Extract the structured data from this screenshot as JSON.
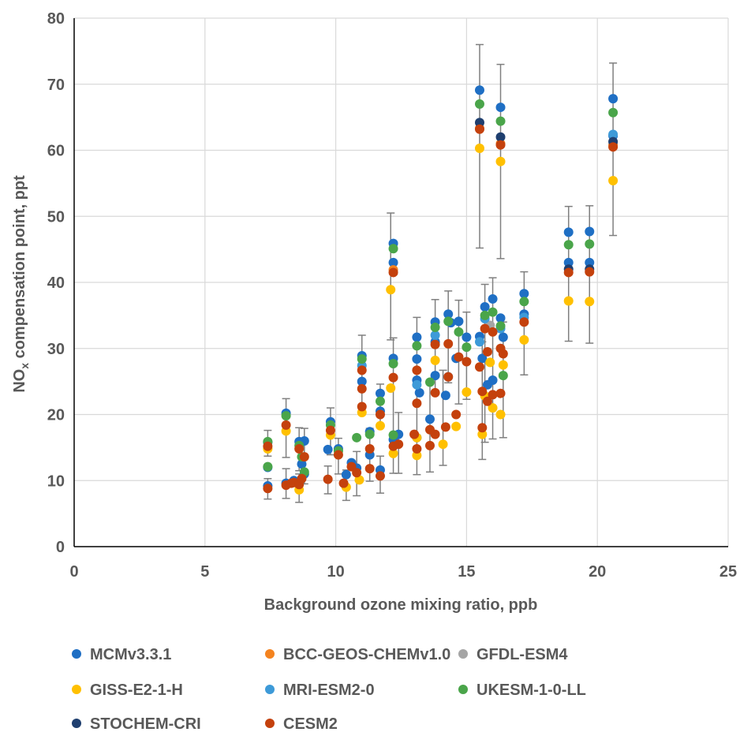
{
  "chart_data": {
    "type": "scatter",
    "xlabel": "Background ozone mixing ratio, ppb",
    "ylabel_main": "NO",
    "ylabel_sub": "x",
    "ylabel_rest": " compensation point, ppt",
    "xlim": [
      0,
      25
    ],
    "ylim": [
      0,
      80
    ],
    "xticks": [
      "0",
      "5",
      "10",
      "15",
      "20",
      "25"
    ],
    "yticks": [
      "0",
      "10",
      "20",
      "30",
      "40",
      "50",
      "60",
      "70",
      "80"
    ],
    "grid": true,
    "legend_position": "bottom",
    "series": [
      {
        "name": "MCMv3.3.1",
        "color": "#1f6fc4",
        "points": [
          [
            7.4,
            15.8
          ],
          [
            7.4,
            12.0
          ],
          [
            7.4,
            9.2
          ],
          [
            8.1,
            20.2
          ],
          [
            8.1,
            9.6
          ],
          [
            8.4,
            10.0
          ],
          [
            8.6,
            15.9
          ],
          [
            8.7,
            12.5
          ],
          [
            8.8,
            16.0
          ],
          [
            8.8,
            11.0
          ],
          [
            9.7,
            14.7
          ],
          [
            9.8,
            18.9
          ],
          [
            10.1,
            14.8
          ],
          [
            10.4,
            10.9
          ],
          [
            10.6,
            12.7
          ],
          [
            10.8,
            11.9
          ],
          [
            11.0,
            28.9
          ],
          [
            11.0,
            25.0
          ],
          [
            11.3,
            17.4
          ],
          [
            11.3,
            13.9
          ],
          [
            11.7,
            20.5
          ],
          [
            11.7,
            23.2
          ],
          [
            11.7,
            11.6
          ],
          [
            12.2,
            45.9
          ],
          [
            12.2,
            43.0
          ],
          [
            12.2,
            28.5
          ],
          [
            12.2,
            16.2
          ],
          [
            12.4,
            17.0
          ],
          [
            13.1,
            31.7
          ],
          [
            13.1,
            25.2
          ],
          [
            13.1,
            28.4
          ],
          [
            13.1,
            16.5
          ],
          [
            13.2,
            23.3
          ],
          [
            13.6,
            19.3
          ],
          [
            13.8,
            34.0
          ],
          [
            13.8,
            31.0
          ],
          [
            13.8,
            25.9
          ],
          [
            14.2,
            22.9
          ],
          [
            14.3,
            35.2
          ],
          [
            14.3,
            25.7
          ],
          [
            14.4,
            33.9
          ],
          [
            14.6,
            28.5
          ],
          [
            14.7,
            34.1
          ],
          [
            15.0,
            31.7
          ],
          [
            15.5,
            69.1
          ],
          [
            15.5,
            31.8
          ],
          [
            15.6,
            28.5
          ],
          [
            15.7,
            36.3
          ],
          [
            15.8,
            24.5
          ],
          [
            16.0,
            37.5
          ],
          [
            16.0,
            25.2
          ],
          [
            16.3,
            66.5
          ],
          [
            16.3,
            34.6
          ],
          [
            16.4,
            31.7
          ],
          [
            17.2,
            38.3
          ],
          [
            17.2,
            35.2
          ],
          [
            18.9,
            47.6
          ],
          [
            18.9,
            43.0
          ],
          [
            19.7,
            47.7
          ],
          [
            19.7,
            43.0
          ],
          [
            20.6,
            67.8
          ],
          [
            20.6,
            62.2
          ]
        ]
      },
      {
        "name": "BCC-GEOS-CHEMv1.0",
        "color": "#f4831f",
        "points": [
          [
            12.2,
            41.9
          ],
          [
            15.5,
            63.3
          ],
          [
            16.3,
            61.0
          ],
          [
            20.6,
            60.8
          ]
        ]
      },
      {
        "name": "GFDL-ESM4",
        "color": "#a5a5a5",
        "points": [
          [
            15.9,
            33.5
          ]
        ]
      },
      {
        "name": "GISS-E2-1-H",
        "color": "#ffc000",
        "points": [
          [
            7.4,
            14.8
          ],
          [
            8.1,
            17.5
          ],
          [
            8.6,
            8.6
          ],
          [
            9.8,
            16.9
          ],
          [
            10.4,
            9.0
          ],
          [
            10.9,
            10.1
          ],
          [
            11.0,
            20.3
          ],
          [
            11.7,
            18.3
          ],
          [
            12.1,
            38.9
          ],
          [
            12.1,
            24.0
          ],
          [
            12.2,
            14.1
          ],
          [
            13.1,
            13.8
          ],
          [
            13.1,
            16.5
          ],
          [
            13.8,
            28.2
          ],
          [
            14.1,
            15.5
          ],
          [
            14.6,
            18.2
          ],
          [
            15.0,
            23.4
          ],
          [
            15.5,
            60.3
          ],
          [
            15.6,
            17.0
          ],
          [
            15.7,
            22.8
          ],
          [
            15.9,
            27.9
          ],
          [
            16.0,
            21.0
          ],
          [
            16.3,
            58.3
          ],
          [
            16.3,
            20.0
          ],
          [
            16.4,
            27.5
          ],
          [
            17.2,
            31.3
          ],
          [
            18.9,
            37.2
          ],
          [
            19.7,
            37.1
          ],
          [
            20.6,
            55.4
          ]
        ]
      },
      {
        "name": "MRI-ESM2-0",
        "color": "#3d9ad8",
        "points": [
          [
            11.0,
            27.4
          ],
          [
            13.1,
            24.5
          ],
          [
            13.8,
            32.0
          ],
          [
            15.5,
            31.0
          ],
          [
            15.7,
            34.5
          ],
          [
            16.3,
            33.0
          ],
          [
            17.2,
            34.7
          ],
          [
            20.6,
            62.4
          ]
        ]
      },
      {
        "name": "UKESM-1-0-LL",
        "color": "#4aa54a",
        "points": [
          [
            7.4,
            15.9
          ],
          [
            7.4,
            12.1
          ],
          [
            8.1,
            19.8
          ],
          [
            8.6,
            15.3
          ],
          [
            8.7,
            13.6
          ],
          [
            8.8,
            11.3
          ],
          [
            9.8,
            18.4
          ],
          [
            10.1,
            14.5
          ],
          [
            10.8,
            16.5
          ],
          [
            11.0,
            28.4
          ],
          [
            11.3,
            17.0
          ],
          [
            11.7,
            22.0
          ],
          [
            12.2,
            45.1
          ],
          [
            12.2,
            27.7
          ],
          [
            12.2,
            16.9
          ],
          [
            13.1,
            30.4
          ],
          [
            13.6,
            24.9
          ],
          [
            13.8,
            33.2
          ],
          [
            14.3,
            34.1
          ],
          [
            14.7,
            32.5
          ],
          [
            15.0,
            30.2
          ],
          [
            15.5,
            67.0
          ],
          [
            15.7,
            35.0
          ],
          [
            16.0,
            35.5
          ],
          [
            16.3,
            64.4
          ],
          [
            16.3,
            33.4
          ],
          [
            16.4,
            25.9
          ],
          [
            17.2,
            37.1
          ],
          [
            18.9,
            45.7
          ],
          [
            19.7,
            45.8
          ],
          [
            20.6,
            65.7
          ]
        ]
      },
      {
        "name": "STOCHEM-CRI",
        "color": "#1f3f6f",
        "points": [
          [
            15.5,
            64.2
          ],
          [
            16.3,
            62.0
          ],
          [
            18.9,
            42.0
          ],
          [
            19.7,
            42.0
          ],
          [
            20.6,
            61.3
          ]
        ]
      },
      {
        "name": "CESM2",
        "color": "#c4410d",
        "points": [
          [
            7.4,
            15.2
          ],
          [
            7.4,
            8.8
          ],
          [
            8.1,
            18.4
          ],
          [
            8.1,
            9.3
          ],
          [
            8.3,
            9.6
          ],
          [
            8.4,
            9.7
          ],
          [
            8.6,
            14.8
          ],
          [
            8.6,
            9.4
          ],
          [
            8.7,
            10.3
          ],
          [
            8.8,
            13.6
          ],
          [
            9.7,
            10.2
          ],
          [
            9.8,
            17.6
          ],
          [
            10.1,
            13.9
          ],
          [
            10.3,
            9.6
          ],
          [
            10.6,
            12.1
          ],
          [
            10.8,
            11.2
          ],
          [
            11.0,
            26.7
          ],
          [
            11.0,
            23.9
          ],
          [
            11.0,
            21.2
          ],
          [
            11.3,
            14.8
          ],
          [
            11.3,
            11.8
          ],
          [
            11.7,
            20.0
          ],
          [
            11.7,
            10.7
          ],
          [
            12.2,
            41.5
          ],
          [
            12.2,
            25.6
          ],
          [
            12.2,
            15.2
          ],
          [
            12.4,
            15.5
          ],
          [
            13.0,
            17.0
          ],
          [
            13.1,
            26.7
          ],
          [
            13.1,
            21.7
          ],
          [
            13.1,
            14.8
          ],
          [
            13.6,
            17.7
          ],
          [
            13.6,
            15.3
          ],
          [
            13.8,
            30.6
          ],
          [
            13.8,
            23.3
          ],
          [
            13.8,
            17.0
          ],
          [
            14.2,
            18.1
          ],
          [
            14.3,
            30.7
          ],
          [
            14.3,
            25.7
          ],
          [
            14.6,
            20.0
          ],
          [
            14.7,
            28.7
          ],
          [
            15.0,
            28.0
          ],
          [
            15.5,
            63.2
          ],
          [
            15.5,
            27.2
          ],
          [
            15.6,
            23.5
          ],
          [
            15.6,
            18.0
          ],
          [
            15.7,
            33.0
          ],
          [
            15.8,
            29.5
          ],
          [
            15.8,
            22.0
          ],
          [
            16.0,
            32.5
          ],
          [
            16.0,
            23.0
          ],
          [
            16.3,
            60.8
          ],
          [
            16.3,
            30.0
          ],
          [
            16.3,
            23.2
          ],
          [
            16.4,
            29.2
          ],
          [
            17.2,
            34.0
          ],
          [
            18.9,
            41.5
          ],
          [
            19.7,
            41.6
          ],
          [
            20.6,
            60.5
          ]
        ]
      }
    ],
    "error_bars": [
      [
        7.4,
        13.7,
        17.6
      ],
      [
        7.4,
        7.2,
        10.3
      ],
      [
        8.1,
        13.5,
        22.4
      ],
      [
        8.1,
        7.3,
        11.8
      ],
      [
        8.6,
        6.7,
        11.0
      ],
      [
        8.6,
        11.5,
        18.0
      ],
      [
        8.8,
        9.5,
        17.9
      ],
      [
        9.7,
        8.0,
        12.2
      ],
      [
        9.8,
        13.9,
        21.0
      ],
      [
        10.1,
        11.0,
        16.4
      ],
      [
        10.4,
        7.0,
        11.6
      ],
      [
        10.8,
        7.7,
        14.4
      ],
      [
        11.0,
        20.0,
        32.0
      ],
      [
        11.3,
        9.9,
        17.9
      ],
      [
        11.7,
        8.1,
        13.7
      ],
      [
        11.7,
        18.4,
        24.6
      ],
      [
        12.1,
        31.3,
        50.5
      ],
      [
        12.2,
        11.1,
        31.6
      ],
      [
        12.4,
        11.1,
        20.3
      ],
      [
        13.1,
        10.9,
        34.7
      ],
      [
        13.6,
        11.3,
        24.6
      ],
      [
        13.8,
        23.0,
        37.4
      ],
      [
        14.1,
        12.3,
        26.7
      ],
      [
        14.3,
        24.8,
        38.7
      ],
      [
        14.7,
        21.6,
        37.3
      ],
      [
        15.0,
        22.3,
        35.5
      ],
      [
        15.5,
        45.2,
        76.0
      ],
      [
        15.6,
        13.2,
        31.0
      ],
      [
        15.7,
        15.8,
        39.7
      ],
      [
        16.0,
        16.3,
        40.7
      ],
      [
        16.3,
        43.6,
        73.0
      ],
      [
        16.4,
        16.5,
        34.0
      ],
      [
        17.2,
        26.0,
        41.6
      ],
      [
        18.9,
        31.1,
        51.5
      ],
      [
        19.7,
        30.8,
        51.6
      ],
      [
        20.6,
        47.1,
        73.2
      ]
    ]
  }
}
